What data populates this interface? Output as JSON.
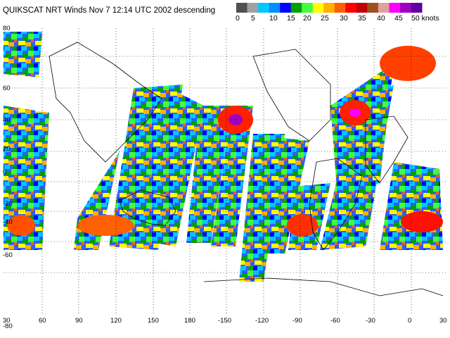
{
  "title": "QUIKSCAT NRT Winds Nov  7 12:14 UTC 2002 descending",
  "legend": {
    "labels": [
      "0",
      "5",
      "10",
      "15",
      "20",
      "25",
      "30",
      "35",
      "40",
      "45",
      "50 knots"
    ],
    "colors": [
      "#505050",
      "#a0a0a0",
      "#00c8ff",
      "#0090ff",
      "#0000ff",
      "#00a000",
      "#40ff40",
      "#ffff00",
      "#ffb000",
      "#ff6000",
      "#ff0000",
      "#c00000",
      "#a05020",
      "#e0a0a0",
      "#ff00ff",
      "#a000c0",
      "#6000a0"
    ]
  },
  "axes": {
    "lon_labels": [
      "30",
      "60",
      "90",
      "120",
      "150",
      "180",
      "-150",
      "-120",
      "-90",
      "-60",
      "-30",
      "0",
      "30"
    ],
    "lat_labels": [
      "80",
      "60",
      "40",
      "20",
      "0",
      "-20",
      "-40",
      "-60",
      "-80"
    ]
  }
}
